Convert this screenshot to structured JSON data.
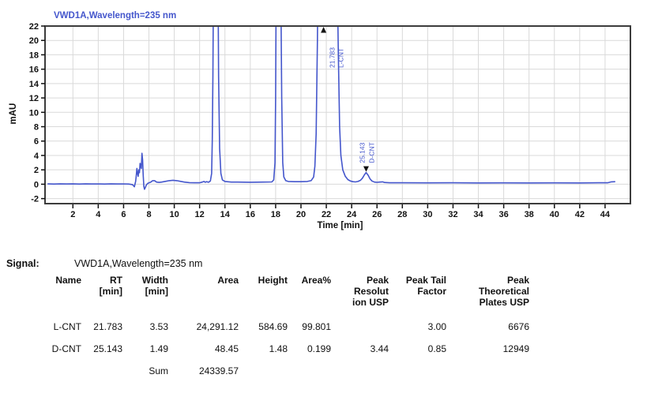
{
  "signal": {
    "label": "Signal:",
    "value": "VWD1A,Wavelength=235 nm"
  },
  "chart_data": {
    "type": "line",
    "title": "VWD1A,Wavelength=235 nm",
    "legend": "VWD1A,Wavelength=235 nm",
    "xlabel": "Time [min]",
    "ylabel": "mAU",
    "xlim": [
      -0.2,
      46.0
    ],
    "ylim": [
      -2.7,
      22
    ],
    "x_ticks": [
      2,
      4,
      6,
      8,
      10,
      12,
      14,
      16,
      18,
      20,
      22,
      24,
      26,
      28,
      30,
      32,
      34,
      36,
      38,
      40,
      42,
      44
    ],
    "y_ticks": [
      -2,
      0,
      2,
      4,
      6,
      8,
      10,
      12,
      14,
      16,
      18,
      20,
      22
    ],
    "grid": true,
    "colors": {
      "trace": "#4456cc",
      "annotation": "#4456cc",
      "grid": "#d9d9d9",
      "frame": "#3c3c3c",
      "tick_text": "#111111"
    },
    "peaks": [
      {
        "rt": 21.783,
        "rt_label": "21.783",
        "name": "L-CNT",
        "marker": "up",
        "clipped": true
      },
      {
        "rt": 25.143,
        "rt_label": "25.143",
        "name": "D-CNT",
        "marker": "down",
        "apex_mau": 1.62
      }
    ],
    "series": [
      {
        "name": "VWD1A,Wavelength=235 nm",
        "points": [
          [
            0,
            0.05
          ],
          [
            0.5,
            0.02
          ],
          [
            1,
            0.05
          ],
          [
            1.5,
            0.03
          ],
          [
            2,
            0.05
          ],
          [
            2.5,
            0.02
          ],
          [
            3,
            0.05
          ],
          [
            3.5,
            0.03
          ],
          [
            4,
            0.04
          ],
          [
            4.5,
            0.02
          ],
          [
            5,
            0.05
          ],
          [
            5.5,
            0.03
          ],
          [
            6,
            0.04
          ],
          [
            6.4,
            0.02
          ],
          [
            6.7,
            -0.05
          ],
          [
            6.85,
            -0.35
          ],
          [
            6.95,
            0.4
          ],
          [
            7.0,
            1.2
          ],
          [
            7.05,
            2.2
          ],
          [
            7.1,
            1.5
          ],
          [
            7.15,
            1.1
          ],
          [
            7.2,
            2.0
          ],
          [
            7.25,
            1.6
          ],
          [
            7.3,
            2.9
          ],
          [
            7.4,
            2.2
          ],
          [
            7.45,
            4.3
          ],
          [
            7.5,
            3.4
          ],
          [
            7.55,
            1.2
          ],
          [
            7.6,
            -0.3
          ],
          [
            7.65,
            -0.7
          ],
          [
            7.72,
            -0.45
          ],
          [
            7.8,
            -0.1
          ],
          [
            7.9,
            0.1
          ],
          [
            8.0,
            0.2
          ],
          [
            8.15,
            0.3
          ],
          [
            8.3,
            0.5
          ],
          [
            8.45,
            0.5
          ],
          [
            8.6,
            0.3
          ],
          [
            8.8,
            0.25
          ],
          [
            9.0,
            0.3
          ],
          [
            9.3,
            0.4
          ],
          [
            9.6,
            0.5
          ],
          [
            9.9,
            0.55
          ],
          [
            10.2,
            0.5
          ],
          [
            10.5,
            0.4
          ],
          [
            10.8,
            0.3
          ],
          [
            11.2,
            0.22
          ],
          [
            11.6,
            0.2
          ],
          [
            12.0,
            0.2
          ],
          [
            12.2,
            0.3
          ],
          [
            12.35,
            0.38
          ],
          [
            12.45,
            0.28
          ],
          [
            12.55,
            0.35
          ],
          [
            12.7,
            0.28
          ],
          [
            12.85,
            0.45
          ],
          [
            12.95,
            1.5
          ],
          [
            13.0,
            6
          ],
          [
            13.05,
            15
          ],
          [
            13.1,
            30
          ],
          [
            13.45,
            30
          ],
          [
            13.5,
            15
          ],
          [
            13.58,
            5
          ],
          [
            13.68,
            1.5
          ],
          [
            13.8,
            0.6
          ],
          [
            14.0,
            0.38
          ],
          [
            14.5,
            0.3
          ],
          [
            15,
            0.3
          ],
          [
            16,
            0.28
          ],
          [
            17,
            0.3
          ],
          [
            17.7,
            0.32
          ],
          [
            17.85,
            0.6
          ],
          [
            17.95,
            3
          ],
          [
            18.0,
            12
          ],
          [
            18.05,
            30
          ],
          [
            18.4,
            30
          ],
          [
            18.48,
            12
          ],
          [
            18.56,
            3
          ],
          [
            18.65,
            1.0
          ],
          [
            18.8,
            0.5
          ],
          [
            19.0,
            0.38
          ],
          [
            19.5,
            0.35
          ],
          [
            20,
            0.35
          ],
          [
            20.5,
            0.38
          ],
          [
            20.8,
            0.5
          ],
          [
            21.0,
            1.0
          ],
          [
            21.1,
            2.5
          ],
          [
            21.2,
            7
          ],
          [
            21.3,
            20
          ],
          [
            21.35,
            30
          ],
          [
            22.85,
            30
          ],
          [
            22.95,
            18
          ],
          [
            23.05,
            8
          ],
          [
            23.15,
            4
          ],
          [
            23.3,
            2.0
          ],
          [
            23.5,
            1.1
          ],
          [
            23.7,
            0.65
          ],
          [
            23.9,
            0.45
          ],
          [
            24.1,
            0.35
          ],
          [
            24.3,
            0.32
          ],
          [
            24.5,
            0.38
          ],
          [
            24.7,
            0.55
          ],
          [
            24.85,
            0.85
          ],
          [
            25.0,
            1.3
          ],
          [
            25.14,
            1.62
          ],
          [
            25.3,
            1.25
          ],
          [
            25.45,
            0.75
          ],
          [
            25.6,
            0.45
          ],
          [
            25.8,
            0.3
          ],
          [
            26.0,
            0.26
          ],
          [
            26.2,
            0.3
          ],
          [
            26.45,
            0.33
          ],
          [
            26.6,
            0.24
          ],
          [
            27,
            0.2
          ],
          [
            28,
            0.2
          ],
          [
            30,
            0.19
          ],
          [
            32,
            0.2
          ],
          [
            34,
            0.18
          ],
          [
            36,
            0.19
          ],
          [
            38,
            0.18
          ],
          [
            40,
            0.19
          ],
          [
            42,
            0.18
          ],
          [
            43.5,
            0.2
          ],
          [
            44.2,
            0.2
          ],
          [
            44.5,
            0.33
          ],
          [
            44.8,
            0.35
          ]
        ]
      }
    ]
  },
  "table": {
    "headers": [
      "Name",
      "RT\n[min]",
      "Width\n[min]",
      "Area",
      "Height",
      "Area%",
      "Peak\nResolut\nion USP",
      "Peak Tail\nFactor",
      "Peak\nTheoretical\nPlates USP"
    ],
    "rows": [
      [
        "L-CNT",
        "21.783",
        "3.53",
        "24,291.12",
        "584.69",
        "99.801",
        "",
        "3.00",
        "6676"
      ],
      [
        "D-CNT",
        "25.143",
        "1.49",
        "48.45",
        "1.48",
        "0.199",
        "3.44",
        "0.85",
        "12949"
      ],
      [
        "",
        "",
        "Sum",
        "24339.57",
        "",
        "",
        "",
        "",
        ""
      ]
    ]
  }
}
